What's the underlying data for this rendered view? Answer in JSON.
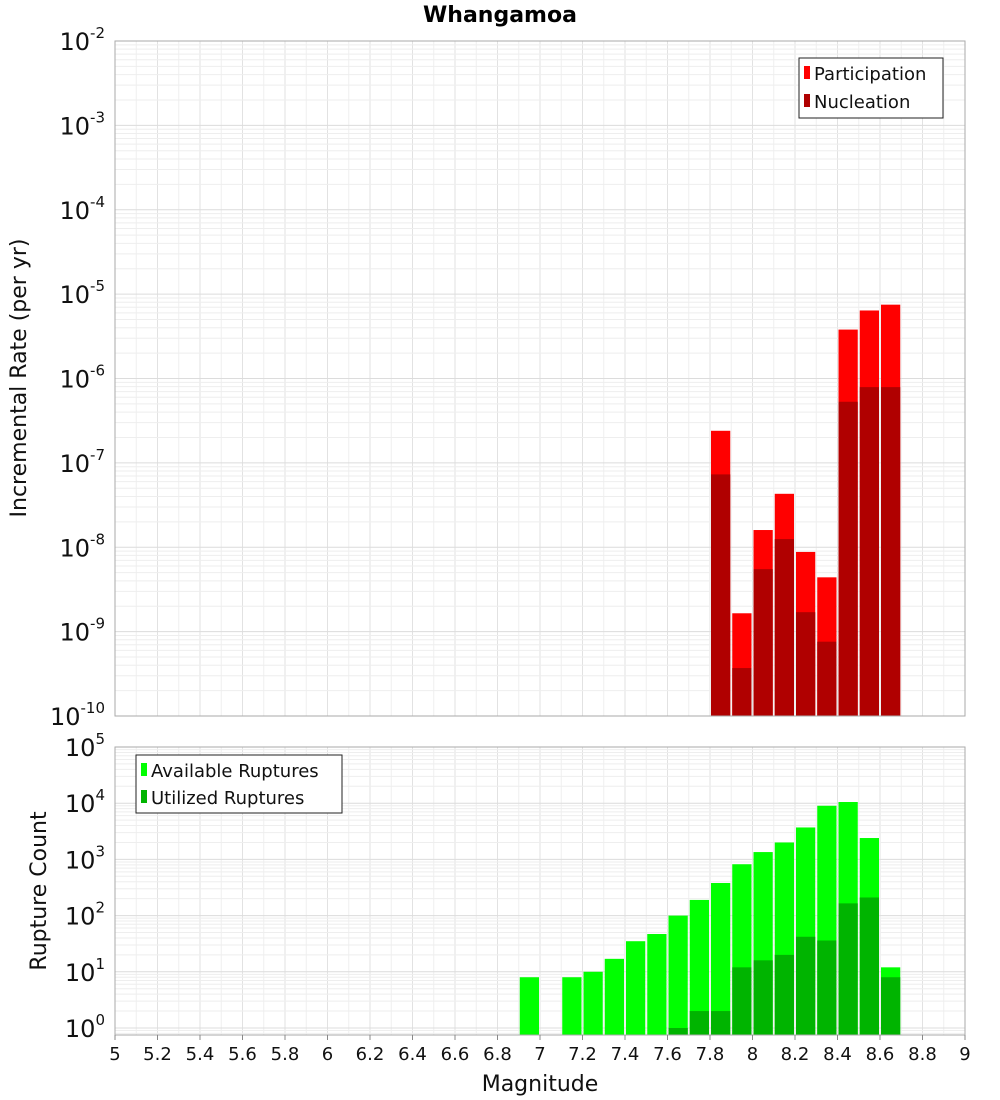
{
  "chart_data": [
    {
      "type": "bar",
      "title": "Whangamoa",
      "xlabel": "",
      "ylabel": "Incremental Rate (per yr)",
      "yscale": "log",
      "xlim": [
        5,
        9
      ],
      "ylim": [
        1e-10,
        0.01
      ],
      "bar_width": 0.1,
      "legend_position": "top-right",
      "colors": {
        "Participation": "#ff0000",
        "Nucleation": "#b00000"
      },
      "series": [
        {
          "name": "Participation",
          "x": [
            7.85,
            7.95,
            8.05,
            8.15,
            8.25,
            8.35,
            8.45,
            8.55,
            8.65
          ],
          "values": [
            2.4e-07,
            1.65e-09,
            1.6e-08,
            4.3e-08,
            8.8e-09,
            4.4e-09,
            3.8e-06,
            6.4e-06,
            7.5e-06
          ]
        },
        {
          "name": "Nucleation",
          "x": [
            7.85,
            7.95,
            8.05,
            8.15,
            8.25,
            8.35,
            8.45,
            8.55,
            8.65
          ],
          "values": [
            7.3e-08,
            3.7e-10,
            5.5e-09,
            1.25e-08,
            1.7e-09,
            7.6e-10,
            5.3e-07,
            7.9e-07,
            7.9e-07
          ]
        }
      ],
      "grid": true
    },
    {
      "type": "bar",
      "title": "",
      "xlabel": "Magnitude",
      "ylabel": "Rupture Count",
      "yscale": "log",
      "xlim": [
        5,
        9
      ],
      "ylim": [
        0.75,
        100000.0
      ],
      "bar_width": 0.1,
      "legend_position": "top-left",
      "x_ticks": [
        "5",
        "5.2",
        "5.4",
        "5.6",
        "5.8",
        "6",
        "6.2",
        "6.4",
        "6.6",
        "6.8",
        "7",
        "7.2",
        "7.4",
        "7.6",
        "7.8",
        "8",
        "8.2",
        "8.4",
        "8.6",
        "8.8",
        "9"
      ],
      "colors": {
        "Available Ruptures": "#00ff00",
        "Utilized Ruptures": "#00b400"
      },
      "series": [
        {
          "name": "Available Ruptures",
          "x": [
            6.95,
            7.15,
            7.25,
            7.35,
            7.45,
            7.55,
            7.65,
            7.75,
            7.85,
            7.95,
            8.05,
            8.15,
            8.25,
            8.35,
            8.45,
            8.55,
            8.65
          ],
          "values": [
            8,
            8,
            10,
            17,
            35,
            47,
            100,
            190,
            380,
            820,
            1350,
            2000,
            3700,
            9000,
            10500,
            2400,
            12
          ]
        },
        {
          "name": "Utilized Ruptures",
          "x": [
            7.65,
            7.75,
            7.85,
            7.95,
            8.05,
            8.15,
            8.25,
            8.35,
            8.45,
            8.55,
            8.65
          ],
          "values": [
            1,
            2,
            2,
            12,
            16,
            20,
            42,
            36,
            165,
            210,
            8
          ]
        }
      ],
      "grid": true
    }
  ]
}
